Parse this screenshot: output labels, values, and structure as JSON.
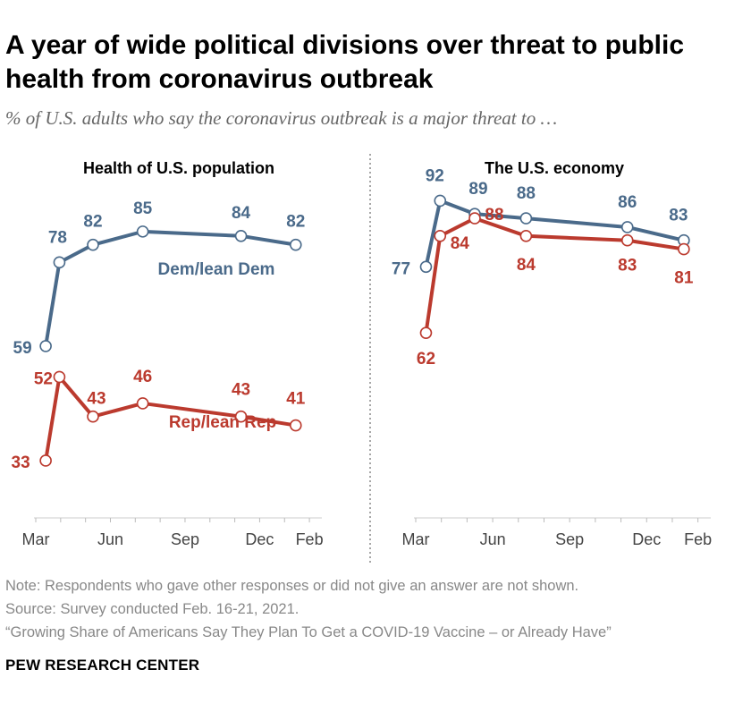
{
  "title": "A year of wide political divisions over threat to public health from coronavirus outbreak",
  "subtitle": "% of U.S. adults who say the coronavirus outbreak is a major threat to …",
  "chart_data": [
    {
      "type": "line",
      "title": "Health of U.S. population",
      "x_ticks": [
        "Mar",
        "Jun",
        "Sep",
        "Dec",
        "Feb"
      ],
      "series": [
        {
          "name": "Dem/lean Dem",
          "color": "#4a6a8a",
          "labels": [
            "59",
            "78",
            "82",
            "85",
            "84",
            "82"
          ],
          "values": [
            59,
            78,
            82,
            85,
            84,
            82
          ]
        },
        {
          "name": "Rep/lean Rep",
          "color": "#bb3a2e",
          "labels": [
            "33",
            "52",
            "43",
            "46",
            "43",
            "41"
          ],
          "values": [
            33,
            52,
            43,
            46,
            43,
            41
          ]
        }
      ]
    },
    {
      "type": "line",
      "title": "The U.S. economy",
      "x_ticks": [
        "Mar",
        "Jun",
        "Sep",
        "Dec",
        "Feb"
      ],
      "series": [
        {
          "name": "Dem/lean Dem",
          "color": "#4a6a8a",
          "labels": [
            "77",
            "92",
            "89",
            "88",
            "86",
            "83"
          ],
          "values": [
            77,
            92,
            89,
            88,
            86,
            83
          ]
        },
        {
          "name": "Rep/lean Rep",
          "color": "#bb3a2e",
          "labels": [
            "62",
            "84",
            "88",
            "84",
            "83",
            "81"
          ],
          "values": [
            62,
            84,
            88,
            84,
            83,
            81
          ]
        }
      ]
    }
  ],
  "notes": {
    "note": "Note: Respondents who gave other responses or did not give an answer are not shown.",
    "source": "Source: Survey conducted Feb. 16-21, 2021.",
    "report": "“Growing Share of Americans Say They Plan To Get a COVID-19 Vaccine – or Already Have”"
  },
  "brand": "PEW RESEARCH CENTER"
}
